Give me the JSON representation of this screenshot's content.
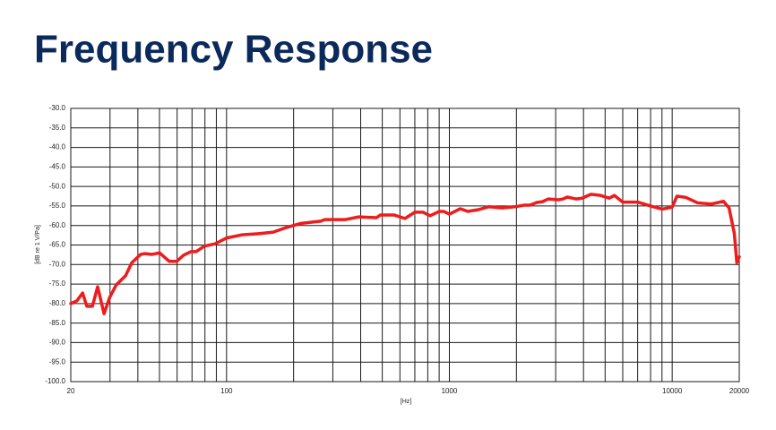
{
  "chart_data": {
    "type": "line",
    "title": "Frequency Response",
    "x_label": "[Hz]",
    "y_label": "[dB re 1 V/Pa]",
    "log_x": true,
    "grid": true,
    "color": "#ee1c1c",
    "xlim": [
      20,
      20000
    ],
    "ylim": [
      -100,
      -30
    ],
    "xticks": [
      20,
      100,
      1000,
      10000,
      20000
    ],
    "xminor_ticks": [
      30,
      40,
      50,
      60,
      70,
      80,
      90,
      200,
      300,
      400,
      500,
      600,
      700,
      800,
      900,
      2000,
      3000,
      4000,
      5000,
      6000,
      7000,
      8000,
      9000
    ],
    "yticks": [
      {
        "value": -30,
        "label": "-30.0"
      },
      {
        "value": -35,
        "label": "-35.0"
      },
      {
        "value": -40,
        "label": "-40.0"
      },
      {
        "value": -45,
        "label": "-45.0"
      },
      {
        "value": -50,
        "label": "-50.0"
      },
      {
        "value": -55,
        "label": "-55.0"
      },
      {
        "value": -60,
        "label": "-60.0"
      },
      {
        "value": -65,
        "label": "-65.0"
      },
      {
        "value": -70,
        "label": "-70.0"
      },
      {
        "value": -75,
        "label": "-75.0"
      },
      {
        "value": -80,
        "label": "-80.0"
      },
      {
        "value": -85,
        "label": "-85.0"
      },
      {
        "value": -90,
        "label": "-90.0"
      },
      {
        "value": -95,
        "label": "-95.0"
      },
      {
        "value": -100,
        "label": "-100.0"
      }
    ],
    "x": [
      20,
      21.3,
      22.6,
      23.6,
      25,
      26.4,
      28.2,
      29.9,
      32,
      35.2,
      37.6,
      41.2,
      43,
      46.4,
      50,
      55.4,
      59.7,
      64.2,
      69.2,
      73,
      79.4,
      88.8,
      100,
      117,
      139,
      162,
      186,
      214,
      246,
      265,
      275,
      340,
      392,
      471,
      490,
      564,
      632,
      700,
      762,
      820,
      900,
      945,
      1000,
      1120,
      1210,
      1360,
      1500,
      1720,
      1970,
      2160,
      2300,
      2470,
      2620,
      2780,
      3100,
      3240,
      3380,
      3700,
      3940,
      4320,
      4770,
      5220,
      5500,
      6000,
      6480,
      7000,
      8000,
      9000,
      10000,
      10500,
      11500,
      13000,
      15000,
      17000,
      18000,
      19000,
      19500,
      20000
    ],
    "values": [
      -80.0,
      -79.3,
      -77.3,
      -80.7,
      -80.7,
      -75.7,
      -82.6,
      -78.4,
      -75.2,
      -72.9,
      -69.5,
      -67.4,
      -67.2,
      -67.4,
      -67.0,
      -69.2,
      -69.2,
      -67.6,
      -66.7,
      -66.7,
      -65.3,
      -64.7,
      -63.2,
      -62.4,
      -62.1,
      -61.7,
      -60.5,
      -59.5,
      -59.1,
      -58.9,
      -58.5,
      -58.5,
      -57.8,
      -58.0,
      -57.3,
      -57.3,
      -58.2,
      -56.6,
      -56.6,
      -57.5,
      -56.4,
      -56.4,
      -57.1,
      -55.7,
      -56.4,
      -55.9,
      -55.2,
      -55.5,
      -55.2,
      -54.8,
      -54.8,
      -54.1,
      -53.9,
      -53.2,
      -53.4,
      -53.2,
      -52.7,
      -53.2,
      -53.0,
      -52.0,
      -52.3,
      -53.0,
      -52.3,
      -54.0,
      -54.0,
      -54.0,
      -55.0,
      -55.8,
      -55.3,
      -52.5,
      -52.8,
      -54.2,
      -54.5,
      -53.8,
      -55.5,
      -62.0,
      -69.5,
      -68.0
    ]
  }
}
